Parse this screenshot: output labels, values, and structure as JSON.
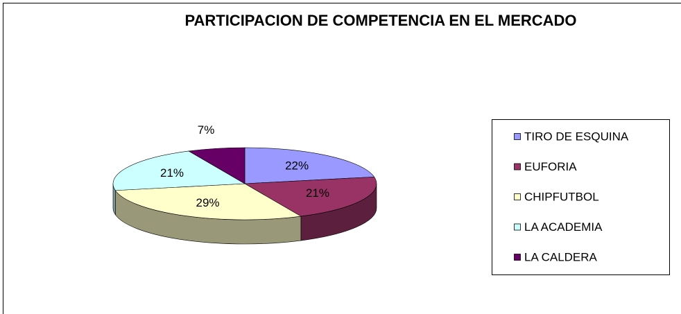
{
  "chart_data": {
    "type": "pie",
    "title": "PARTICIPACION DE COMPETENCIA EN EL MERCADO",
    "categories": [
      "TIRO DE ESQUINA",
      "EUFORIA",
      "CHIPFUTBOL",
      "LA ACADEMIA",
      "LA CALDERA"
    ],
    "values": [
      22,
      21,
      29,
      21,
      7
    ],
    "value_labels": [
      "22%",
      "21%",
      "29%",
      "21%",
      "7%"
    ],
    "colors": [
      "#9999ff",
      "#993366",
      "#ffffcc",
      "#ccffff",
      "#660066"
    ],
    "legend": "right"
  }
}
